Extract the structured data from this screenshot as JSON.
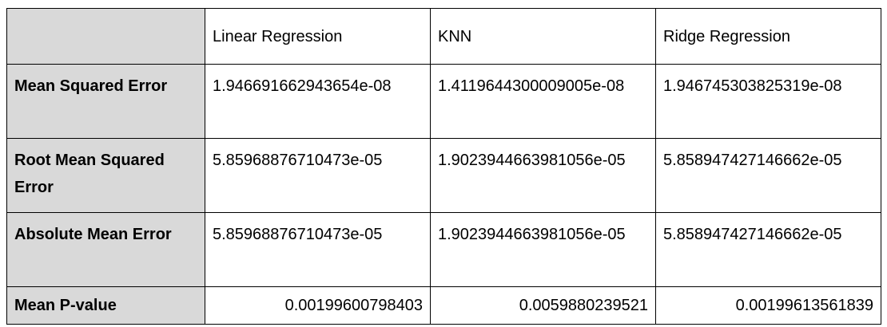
{
  "table": {
    "columns": [
      "",
      "Linear Regression",
      "KNN",
      "Ridge Regression"
    ],
    "rows": [
      {
        "label": "Mean Squared Error",
        "values": [
          "1.946691662943654e-08",
          "1.4119644300009005e-08",
          "1.946745303825319e-08"
        ]
      },
      {
        "label": "Root Mean Squared Error",
        "values": [
          "5.85968876710473e-05",
          "1.9023944663981056e-05",
          "5.858947427146662e-05"
        ]
      },
      {
        "label": "Absolute Mean Error",
        "values": [
          "5.85968876710473e-05",
          "1.9023944663981056e-05",
          "5.858947427146662e-05"
        ]
      },
      {
        "label": "Mean P-value",
        "values": [
          "0.00199600798403",
          "0.0059880239521",
          "0.00199613561839"
        ]
      }
    ]
  }
}
